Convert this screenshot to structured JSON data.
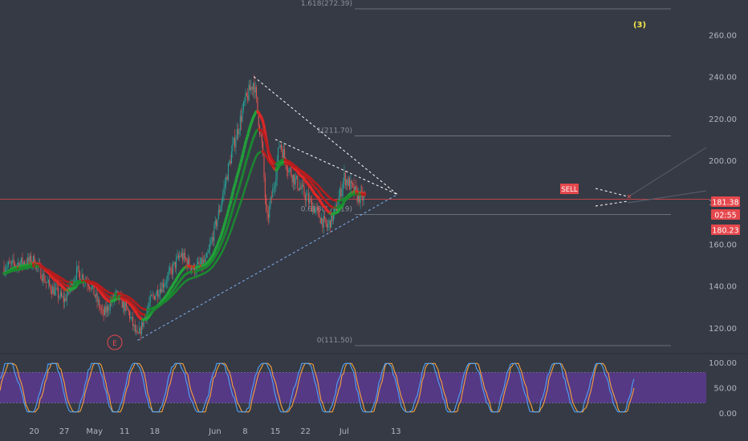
{
  "chart_data": [
    {
      "type": "candlestick",
      "pane": "price",
      "title": "",
      "y_axis": {
        "ticks": [
          "120.00",
          "140.00",
          "160.00",
          "180.00",
          "200.00",
          "220.00",
          "240.00",
          "260.00"
        ],
        "ylim": [
          110,
          276
        ],
        "side": "right"
      },
      "x_axis": {
        "tick_labels": [
          "20",
          "27",
          "May",
          "11",
          "18",
          "Jun",
          "8",
          "15",
          "22",
          "Jul",
          "13"
        ]
      },
      "price_badges": [
        {
          "label": "181.38",
          "color": "#e5484d"
        },
        {
          "label": "02:55",
          "color": "#e5484d"
        },
        {
          "label": "180.23",
          "color": "#e5484d"
        }
      ],
      "current_price": 181.38,
      "fibonacci_levels": [
        {
          "label": "1.618(272.39)",
          "value": 272.39
        },
        {
          "label": "1(211.70)",
          "value": 211.7
        },
        {
          "label": "0.618(174.19)",
          "value": 174.19
        },
        {
          "label": "0(111.50)",
          "value": 111.5
        }
      ],
      "annotations": [
        {
          "text": "(3)",
          "color": "#f5e94a"
        },
        {
          "text": "E",
          "color": "#e5484d"
        },
        {
          "text": "SELL",
          "color": "#e5484d"
        }
      ],
      "trendlines": [
        {
          "style": "dashed",
          "color": "#ffffff",
          "from": [
            "Jun 10",
            240
          ],
          "to": [
            "Jul 7",
            183.5
          ]
        },
        {
          "style": "dashed",
          "color": "#ffffff",
          "from": [
            "Jun 15",
            210
          ],
          "to": [
            "Jul 7",
            183.5
          ]
        },
        {
          "style": "dashed",
          "color": "#7fb2f0",
          "from": [
            "May 14",
            114
          ],
          "to": [
            "Jul 7",
            183.5
          ]
        }
      ],
      "close_series": [
        {
          "date": "Apr 13",
          "value": 149
        },
        {
          "date": "Apr 17",
          "value": 151
        },
        {
          "date": "Apr 20",
          "value": 152
        },
        {
          "date": "Apr 23",
          "value": 141
        },
        {
          "date": "Apr 27",
          "value": 133
        },
        {
          "date": "Apr 30",
          "value": 147
        },
        {
          "date": "May 3",
          "value": 141
        },
        {
          "date": "May 6",
          "value": 126
        },
        {
          "date": "May 9",
          "value": 136
        },
        {
          "date": "May 12",
          "value": 127
        },
        {
          "date": "May 14",
          "value": 115
        },
        {
          "date": "May 17",
          "value": 133
        },
        {
          "date": "May 21",
          "value": 144
        },
        {
          "date": "May 24",
          "value": 155
        },
        {
          "date": "May 27",
          "value": 148
        },
        {
          "date": "May 30",
          "value": 152
        },
        {
          "date": "Jun 2",
          "value": 176
        },
        {
          "date": "Jun 5",
          "value": 205
        },
        {
          "date": "Jun 8",
          "value": 228
        },
        {
          "date": "Jun 10",
          "value": 238
        },
        {
          "date": "Jun 12",
          "value": 205
        },
        {
          "date": "Jun 13",
          "value": 170
        },
        {
          "date": "Jun 15",
          "value": 192
        },
        {
          "date": "Jun 16",
          "value": 209
        },
        {
          "date": "Jun 18",
          "value": 196
        },
        {
          "date": "Jun 21",
          "value": 186
        },
        {
          "date": "Jun 24",
          "value": 177
        },
        {
          "date": "Jun 27",
          "value": 168
        },
        {
          "date": "Jun 29",
          "value": 176
        },
        {
          "date": "Jul 1",
          "value": 192
        },
        {
          "date": "Jul 4",
          "value": 183
        },
        {
          "date": "Jul 6",
          "value": 181.38
        }
      ]
    },
    {
      "type": "line",
      "pane": "stochastic",
      "title": "",
      "y_axis": {
        "ticks": [
          "100.00",
          "50.00",
          "0.00"
        ],
        "ylim": [
          0,
          100
        ],
        "band": [
          20,
          80
        ]
      },
      "series": [
        {
          "color": "#4fa3f7"
        },
        {
          "color": "#f7a23b"
        }
      ]
    }
  ]
}
